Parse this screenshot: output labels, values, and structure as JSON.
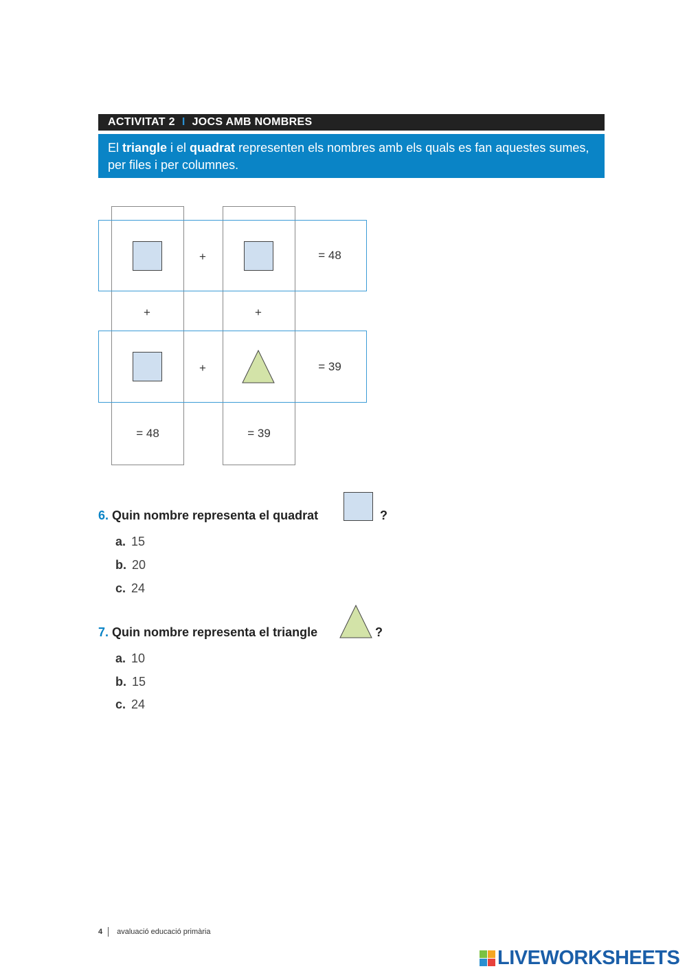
{
  "header": {
    "activity": "ACTIVITAT 2",
    "separator": "I",
    "title": "JOCS AMB NOMBRES"
  },
  "intro": {
    "p1": "El ",
    "b1": "triangle",
    "p2": " i el ",
    "b2": "quadrat",
    "p3": " representen els nombres amb els quals es fan aquestes sumes, per files i per columnes."
  },
  "puzzle": {
    "plus": "+",
    "row1_result": "= 48",
    "row2_result": "= 39",
    "col1_result": "= 48",
    "col2_result": "= 39",
    "square_color": "#cfdff0",
    "triangle_color": "#d3e3a8",
    "row_border_color": "#3a9bd6"
  },
  "questions": [
    {
      "number": "6.",
      "text": "Quin nombre representa el quadrat",
      "suffix": "?",
      "shape": "square",
      "options": [
        {
          "letter": "a.",
          "value": "15"
        },
        {
          "letter": "b.",
          "value": "20"
        },
        {
          "letter": "c.",
          "value": "24"
        }
      ]
    },
    {
      "number": "7.",
      "text": "Quin nombre representa el triangle",
      "suffix": "?",
      "shape": "triangle",
      "options": [
        {
          "letter": "a.",
          "value": "10"
        },
        {
          "letter": "b.",
          "value": "15"
        },
        {
          "letter": "c.",
          "value": "24"
        }
      ]
    }
  ],
  "footer": {
    "page": "4",
    "text": "avaluació educació primària"
  },
  "logo": {
    "text": "LIVEWORKSHEETS",
    "letters": [
      "L",
      "I",
      "V",
      "E"
    ]
  },
  "colors": {
    "accent": "#0a84c6",
    "header_bg": "#222222"
  }
}
